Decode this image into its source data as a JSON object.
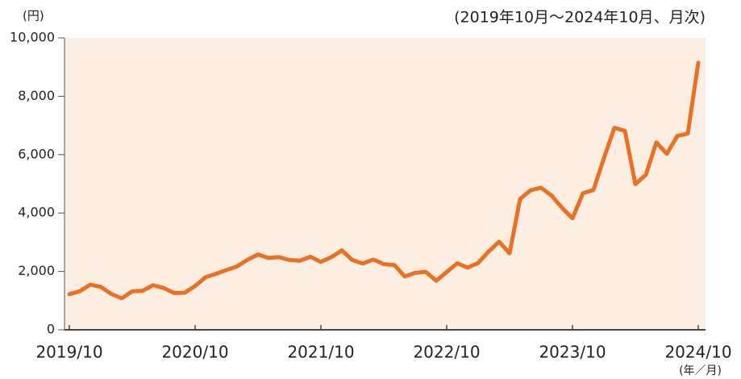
{
  "chart_data": {
    "type": "line",
    "title": "(2019年10月〜2024年10月、月次)",
    "y_unit": "(円)",
    "x_unit": "(年／月)",
    "categories": [
      "2019/10",
      null,
      null,
      null,
      null,
      null,
      null,
      null,
      null,
      null,
      null,
      null,
      "2020/10",
      null,
      null,
      null,
      null,
      null,
      null,
      null,
      null,
      null,
      null,
      null,
      "2021/10",
      null,
      null,
      null,
      null,
      null,
      null,
      null,
      null,
      null,
      null,
      null,
      "2022/10",
      null,
      null,
      null,
      null,
      null,
      null,
      null,
      null,
      null,
      null,
      null,
      "2023/10",
      null,
      null,
      null,
      null,
      null,
      null,
      null,
      null,
      null,
      null,
      null,
      "2024/10"
    ],
    "series": [
      {
        "color": "#ec7023",
        "values": [
          1220,
          1320,
          1550,
          1470,
          1230,
          1080,
          1320,
          1340,
          1530,
          1430,
          1260,
          1270,
          1500,
          1800,
          1920,
          2050,
          2170,
          2400,
          2580,
          2460,
          2490,
          2390,
          2370,
          2500,
          2330,
          2490,
          2720,
          2390,
          2270,
          2410,
          2250,
          2220,
          1830,
          1950,
          1990,
          1680,
          1980,
          2280,
          2130,
          2290,
          2680,
          3020,
          2620,
          4480,
          4780,
          4870,
          4600,
          4180,
          3820,
          4680,
          4790,
          5880,
          6920,
          6820,
          4990,
          5310,
          6420,
          6030,
          6640,
          6720,
          9150
        ]
      }
    ],
    "ylim": [
      0,
      10000
    ],
    "yticks": [
      0,
      {
        "value": 2000,
        "label": "2,000"
      },
      {
        "value": 4000,
        "label": "4,000"
      },
      {
        "value": 6000,
        "label": "6,000"
      },
      {
        "value": 8000,
        "label": "8,000"
      },
      {
        "value": 10000,
        "label": "10,000"
      }
    ],
    "background": "#fdeee3"
  }
}
